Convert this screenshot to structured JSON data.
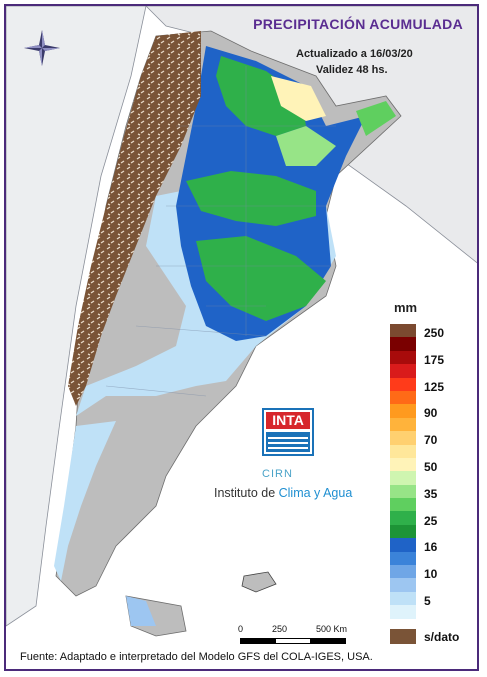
{
  "map": {
    "title": "PRECIPITACIÓN ACUMULADA",
    "updated": "Actualizado a 16/03/20",
    "validity": "Validez 48 hs.",
    "footer": "Fuente: Adaptado e interpretado del Modelo GFS del COLA-IGES, USA."
  },
  "legend": {
    "unit": "mm",
    "bins": [
      {
        "label": "250",
        "color": "#7b4a30"
      },
      {
        "label": "",
        "color": "#7a0000"
      },
      {
        "label": "175",
        "color": "#a80b0b"
      },
      {
        "label": "",
        "color": "#d91b1b"
      },
      {
        "label": "125",
        "color": "#ff3b1a"
      },
      {
        "label": "",
        "color": "#ff6a17"
      },
      {
        "label": "90",
        "color": "#ff9a1e"
      },
      {
        "label": "",
        "color": "#ffb33b"
      },
      {
        "label": "70",
        "color": "#ffd070"
      },
      {
        "label": "",
        "color": "#ffe79a"
      },
      {
        "label": "50",
        "color": "#fff3b8"
      },
      {
        "label": "",
        "color": "#cff5b0"
      },
      {
        "label": "35",
        "color": "#97e487"
      },
      {
        "label": "",
        "color": "#5fcf5f"
      },
      {
        "label": "25",
        "color": "#2fb04a"
      },
      {
        "label": "",
        "color": "#1d9436"
      },
      {
        "label": "16",
        "color": "#1f63c7"
      },
      {
        "label": "",
        "color": "#3b83d9"
      },
      {
        "label": "10",
        "color": "#6fa6e6"
      },
      {
        "label": "",
        "color": "#9dc6f1"
      },
      {
        "label": "5",
        "color": "#bfe1f7"
      },
      {
        "label": "",
        "color": "#dff3fb"
      }
    ],
    "no_data_label": "s/dato",
    "no_data_color": "#7a5437"
  },
  "logo": {
    "inta": "INTA",
    "cirn": "CIRN",
    "institute_prefix": "Instituto de ",
    "institute_highlight": "Clima y Agua"
  },
  "scale": {
    "labels": [
      "0",
      "250",
      "500 Km"
    ]
  },
  "icons": {
    "compass": "compass-rose-icon"
  }
}
